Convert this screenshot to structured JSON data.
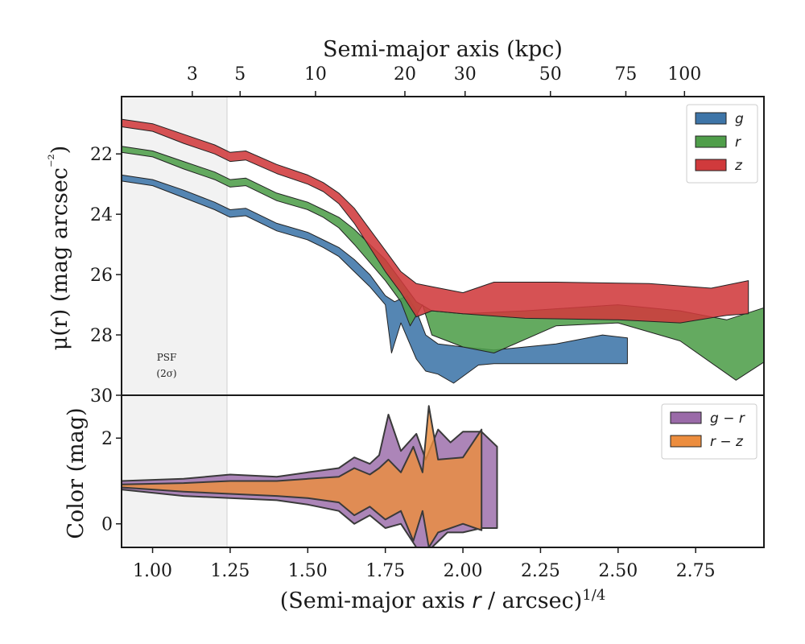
{
  "chart_data": [
    {
      "type": "area",
      "panel": "surface-brightness",
      "top_xlabel": "Semi-major axis (kpc)",
      "top_ticks": [
        {
          "label": "3",
          "x": 1.128
        },
        {
          "label": "5",
          "x": 1.282
        },
        {
          "label": "10",
          "x": 1.525
        },
        {
          "label": "20",
          "x": 1.813
        },
        {
          "label": "30",
          "x": 2.007
        },
        {
          "label": "50",
          "x": 2.282
        },
        {
          "label": "75",
          "x": 2.525
        },
        {
          "label": "100",
          "x": 2.714
        }
      ],
      "ylabel": "μ(r) (mag arcsec⁻²)",
      "xlim": [
        0.9,
        2.97
      ],
      "ylim": [
        30,
        20.1
      ],
      "yticks": [
        {
          "value": 22,
          "label": "22"
        },
        {
          "value": 24,
          "label": "24"
        },
        {
          "value": 26,
          "label": "26"
        },
        {
          "value": 28,
          "label": "28"
        },
        {
          "value": 30,
          "label": "30"
        }
      ],
      "shaded_region": {
        "x0": 0.9,
        "x1": 1.245,
        "label_line1": "PSF",
        "label_line2": "(2σ)"
      },
      "legend": {
        "position": "top-right"
      },
      "series": [
        {
          "name": "g",
          "color": "#3e75a8",
          "upper": [
            [
              0.9,
              22.7
            ],
            [
              1.0,
              22.85
            ],
            [
              1.1,
              23.2
            ],
            [
              1.2,
              23.6
            ],
            [
              1.25,
              23.85
            ],
            [
              1.3,
              23.8
            ],
            [
              1.4,
              24.3
            ],
            [
              1.5,
              24.6
            ],
            [
              1.55,
              24.85
            ],
            [
              1.6,
              25.1
            ],
            [
              1.65,
              25.5
            ],
            [
              1.7,
              26.0
            ],
            [
              1.75,
              26.7
            ],
            [
              1.78,
              26.9
            ],
            [
              1.82,
              26.7
            ],
            [
              1.85,
              27.2
            ],
            [
              1.88,
              28.0
            ],
            [
              1.92,
              28.3
            ],
            [
              2.0,
              28.4
            ],
            [
              2.1,
              28.5
            ],
            [
              2.3,
              28.3
            ],
            [
              2.45,
              28.0
            ],
            [
              2.53,
              28.1
            ]
          ],
          "lower": [
            [
              0.9,
              22.9
            ],
            [
              1.0,
              23.05
            ],
            [
              1.1,
              23.45
            ],
            [
              1.2,
              23.85
            ],
            [
              1.25,
              24.1
            ],
            [
              1.3,
              24.05
            ],
            [
              1.4,
              24.55
            ],
            [
              1.5,
              24.85
            ],
            [
              1.55,
              25.1
            ],
            [
              1.6,
              25.4
            ],
            [
              1.65,
              25.9
            ],
            [
              1.7,
              26.4
            ],
            [
              1.75,
              27.0
            ],
            [
              1.77,
              28.6
            ],
            [
              1.8,
              27.6
            ],
            [
              1.85,
              28.8
            ],
            [
              1.88,
              29.2
            ],
            [
              1.92,
              29.3
            ],
            [
              1.97,
              29.6
            ],
            [
              2.05,
              29.0
            ],
            [
              2.1,
              28.95
            ],
            [
              2.3,
              28.95
            ],
            [
              2.53,
              28.95
            ]
          ]
        },
        {
          "name": "r",
          "color": "#4f9e4a",
          "upper": [
            [
              0.9,
              21.75
            ],
            [
              1.0,
              21.9
            ],
            [
              1.1,
              22.25
            ],
            [
              1.2,
              22.6
            ],
            [
              1.25,
              22.85
            ],
            [
              1.3,
              22.8
            ],
            [
              1.4,
              23.3
            ],
            [
              1.5,
              23.6
            ],
            [
              1.55,
              23.85
            ],
            [
              1.6,
              24.1
            ],
            [
              1.65,
              24.5
            ],
            [
              1.7,
              25.0
            ],
            [
              1.75,
              25.5
            ],
            [
              1.8,
              26.2
            ],
            [
              1.85,
              26.9
            ],
            [
              1.9,
              27.2
            ],
            [
              2.0,
              27.3
            ],
            [
              2.2,
              27.2
            ],
            [
              2.5,
              27.0
            ],
            [
              2.7,
              27.2
            ],
            [
              2.85,
              27.5
            ],
            [
              2.97,
              27.1
            ]
          ],
          "lower": [
            [
              0.9,
              21.95
            ],
            [
              1.0,
              22.1
            ],
            [
              1.1,
              22.5
            ],
            [
              1.2,
              22.85
            ],
            [
              1.25,
              23.1
            ],
            [
              1.3,
              23.05
            ],
            [
              1.4,
              23.55
            ],
            [
              1.5,
              23.85
            ],
            [
              1.55,
              24.1
            ],
            [
              1.6,
              24.45
            ],
            [
              1.65,
              25.0
            ],
            [
              1.7,
              25.6
            ],
            [
              1.75,
              26.2
            ],
            [
              1.8,
              26.9
            ],
            [
              1.83,
              27.7
            ],
            [
              1.87,
              27.0
            ],
            [
              1.9,
              28.0
            ],
            [
              2.0,
              28.4
            ],
            [
              2.1,
              28.6
            ],
            [
              2.3,
              27.7
            ],
            [
              2.5,
              27.6
            ],
            [
              2.7,
              28.2
            ],
            [
              2.88,
              29.5
            ],
            [
              2.97,
              28.9
            ]
          ]
        },
        {
          "name": "z",
          "color": "#d03a3c",
          "upper": [
            [
              0.9,
              20.85
            ],
            [
              1.0,
              21.0
            ],
            [
              1.1,
              21.35
            ],
            [
              1.2,
              21.7
            ],
            [
              1.25,
              21.95
            ],
            [
              1.3,
              21.9
            ],
            [
              1.4,
              22.35
            ],
            [
              1.5,
              22.7
            ],
            [
              1.55,
              22.95
            ],
            [
              1.6,
              23.3
            ],
            [
              1.65,
              23.8
            ],
            [
              1.7,
              24.5
            ],
            [
              1.75,
              25.2
            ],
            [
              1.8,
              25.9
            ],
            [
              1.85,
              26.3
            ],
            [
              1.9,
              26.4
            ],
            [
              2.0,
              26.6
            ],
            [
              2.1,
              26.25
            ],
            [
              2.3,
              26.25
            ],
            [
              2.6,
              26.3
            ],
            [
              2.8,
              26.45
            ],
            [
              2.92,
              26.2
            ]
          ],
          "lower": [
            [
              0.9,
              21.1
            ],
            [
              1.0,
              21.25
            ],
            [
              1.1,
              21.65
            ],
            [
              1.2,
              22.0
            ],
            [
              1.25,
              22.25
            ],
            [
              1.3,
              22.2
            ],
            [
              1.4,
              22.65
            ],
            [
              1.5,
              23.0
            ],
            [
              1.55,
              23.25
            ],
            [
              1.6,
              23.65
            ],
            [
              1.65,
              24.3
            ],
            [
              1.7,
              25.1
            ],
            [
              1.75,
              25.9
            ],
            [
              1.8,
              26.6
            ],
            [
              1.85,
              27.4
            ],
            [
              1.9,
              27.2
            ],
            [
              2.0,
              27.3
            ],
            [
              2.2,
              27.45
            ],
            [
              2.5,
              27.5
            ],
            [
              2.7,
              27.6
            ],
            [
              2.85,
              27.35
            ],
            [
              2.92,
              27.3
            ]
          ]
        }
      ]
    },
    {
      "type": "area",
      "panel": "color",
      "xlabel": "(Semi-major axis r / arcsec)1/4",
      "ylabel": "Color (mag)",
      "xlim": [
        0.9,
        2.97
      ],
      "ylim": [
        -0.55,
        3.0
      ],
      "xticks": [
        {
          "value": 1.0,
          "label": "1.00"
        },
        {
          "value": 1.25,
          "label": "1.25"
        },
        {
          "value": 1.5,
          "label": "1.50"
        },
        {
          "value": 1.75,
          "label": "1.75"
        },
        {
          "value": 2.0,
          "label": "2.00"
        },
        {
          "value": 2.25,
          "label": "2.25"
        },
        {
          "value": 2.5,
          "label": "2.50"
        },
        {
          "value": 2.75,
          "label": "2.75"
        }
      ],
      "yticks": [
        {
          "value": 0,
          "label": "0"
        },
        {
          "value": 2,
          "label": "2"
        }
      ],
      "legend": {
        "position": "top-right"
      },
      "series": [
        {
          "name": "g − r",
          "color": "#9a6aa8",
          "upper": [
            [
              0.9,
              1.0
            ],
            [
              1.1,
              1.05
            ],
            [
              1.25,
              1.15
            ],
            [
              1.4,
              1.1
            ],
            [
              1.5,
              1.2
            ],
            [
              1.6,
              1.3
            ],
            [
              1.65,
              1.55
            ],
            [
              1.7,
              1.4
            ],
            [
              1.73,
              1.6
            ],
            [
              1.76,
              2.55
            ],
            [
              1.8,
              1.7
            ],
            [
              1.85,
              2.1
            ],
            [
              1.88,
              1.5
            ],
            [
              1.92,
              2.2
            ],
            [
              1.96,
              1.9
            ],
            [
              2.0,
              2.15
            ],
            [
              2.06,
              2.15
            ],
            [
              2.11,
              1.8
            ]
          ],
          "lower": [
            [
              0.9,
              0.8
            ],
            [
              1.1,
              0.65
            ],
            [
              1.25,
              0.6
            ],
            [
              1.4,
              0.55
            ],
            [
              1.5,
              0.45
            ],
            [
              1.6,
              0.3
            ],
            [
              1.65,
              0.0
            ],
            [
              1.7,
              0.2
            ],
            [
              1.75,
              -0.1
            ],
            [
              1.8,
              0.0
            ],
            [
              1.85,
              -0.55
            ],
            [
              1.9,
              -0.55
            ],
            [
              1.95,
              -0.2
            ],
            [
              2.0,
              -0.2
            ],
            [
              2.06,
              -0.1
            ],
            [
              2.11,
              -0.1
            ]
          ]
        },
        {
          "name": "r − z",
          "color": "#ec8d3e",
          "upper": [
            [
              0.9,
              0.92
            ],
            [
              1.1,
              0.95
            ],
            [
              1.25,
              1.0
            ],
            [
              1.4,
              1.0
            ],
            [
              1.5,
              1.05
            ],
            [
              1.6,
              1.1
            ],
            [
              1.65,
              1.3
            ],
            [
              1.7,
              1.15
            ],
            [
              1.73,
              1.3
            ],
            [
              1.76,
              1.5
            ],
            [
              1.8,
              1.2
            ],
            [
              1.84,
              1.8
            ],
            [
              1.87,
              1.2
            ],
            [
              1.89,
              2.75
            ],
            [
              1.92,
              1.5
            ],
            [
              2.0,
              1.55
            ],
            [
              2.06,
              2.2
            ]
          ],
          "lower": [
            [
              0.9,
              0.85
            ],
            [
              1.1,
              0.75
            ],
            [
              1.25,
              0.7
            ],
            [
              1.4,
              0.65
            ],
            [
              1.5,
              0.6
            ],
            [
              1.6,
              0.5
            ],
            [
              1.65,
              0.2
            ],
            [
              1.7,
              0.4
            ],
            [
              1.75,
              0.1
            ],
            [
              1.8,
              0.3
            ],
            [
              1.84,
              -0.4
            ],
            [
              1.87,
              0.3
            ],
            [
              1.89,
              -0.55
            ],
            [
              1.92,
              -0.2
            ],
            [
              2.0,
              0.0
            ],
            [
              2.06,
              -0.15
            ]
          ]
        }
      ]
    }
  ]
}
